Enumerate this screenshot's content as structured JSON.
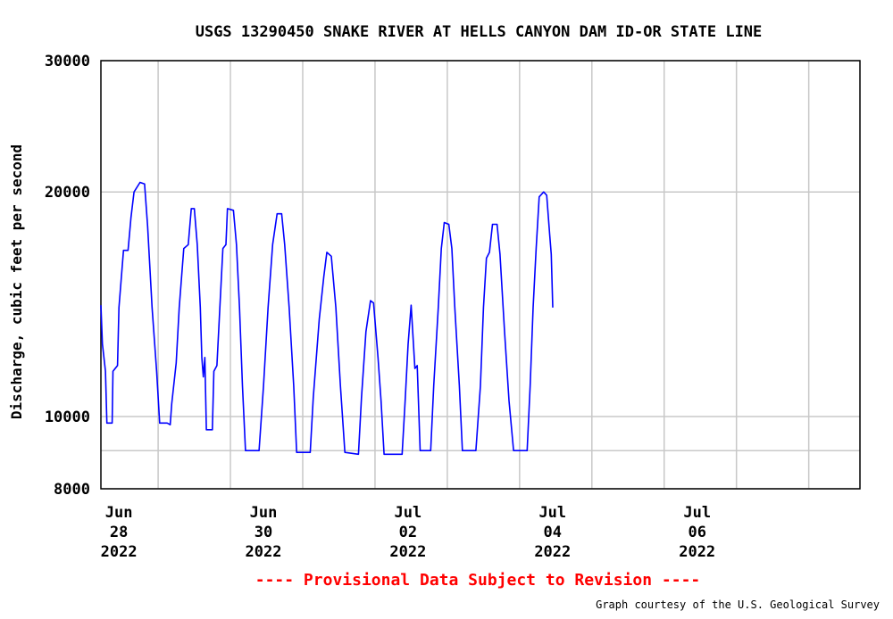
{
  "chart_data": {
    "type": "line",
    "title": "USGS 13290450 SNAKE RIVER AT HELLS CANYON DAM ID-OR STATE LINE",
    "ylabel": "Discharge, cubic feet per second",
    "y_scale": "log",
    "ylim": [
      8000,
      30000
    ],
    "y_ticks": [
      30000,
      20000,
      10000,
      8000
    ],
    "y_gridlines": [
      30000,
      20000,
      10000,
      9000,
      8000
    ],
    "xlim": [
      "2022-06-27 05:00",
      "2022-07-07 17:00"
    ],
    "x_tick_labels": [
      {
        "at": "2022-06-28",
        "month": "Jun",
        "day": "28",
        "year": "2022"
      },
      {
        "at": "2022-06-30",
        "month": "Jun",
        "day": "30",
        "year": "2022"
      },
      {
        "at": "2022-07-02",
        "month": "Jul",
        "day": "02",
        "year": "2022"
      },
      {
        "at": "2022-07-04",
        "month": "Jul",
        "day": "04",
        "year": "2022"
      },
      {
        "at": "2022-07-06",
        "month": "Jul",
        "day": "06",
        "year": "2022"
      }
    ],
    "x_gridlines": [
      "2022-06-28",
      "2022-06-29",
      "2022-06-30",
      "2022-07-01",
      "2022-07-02",
      "2022-07-03",
      "2022-07-04",
      "2022-07-05",
      "2022-07-06",
      "2022-07-07"
    ],
    "grid": true,
    "series": [
      {
        "color": "#0000ff",
        "points": [
          [
            "2022-06-27 05:00",
            14100
          ],
          [
            "2022-06-27 05:30",
            12500
          ],
          [
            "2022-06-27 06:30",
            11500
          ],
          [
            "2022-06-27 07:00",
            9800
          ],
          [
            "2022-06-27 08:45",
            9800
          ],
          [
            "2022-06-27 09:00",
            11500
          ],
          [
            "2022-06-27 10:30",
            11700
          ],
          [
            "2022-06-27 11:00",
            14000
          ],
          [
            "2022-06-27 12:30",
            16700
          ],
          [
            "2022-06-27 14:00",
            16700
          ],
          [
            "2022-06-27 15:00",
            18500
          ],
          [
            "2022-06-27 16:00",
            20000
          ],
          [
            "2022-06-27 18:00",
            20600
          ],
          [
            "2022-06-27 19:30",
            20500
          ],
          [
            "2022-06-27 20:30",
            18000
          ],
          [
            "2022-06-27 22:00",
            14000
          ],
          [
            "2022-06-27 23:30",
            11500
          ],
          [
            "2022-06-28 00:30",
            9800
          ],
          [
            "2022-06-28 03:00",
            9800
          ],
          [
            "2022-06-28 04:00",
            9750
          ],
          [
            "2022-06-28 04:30",
            10400
          ],
          [
            "2022-06-28 06:00",
            11800
          ],
          [
            "2022-06-28 07:00",
            14000
          ],
          [
            "2022-06-28 08:30",
            16800
          ],
          [
            "2022-06-28 10:00",
            17000
          ],
          [
            "2022-06-28 11:00",
            19000
          ],
          [
            "2022-06-28 12:00",
            19000
          ],
          [
            "2022-06-28 13:00",
            17000
          ],
          [
            "2022-06-28 14:00",
            14000
          ],
          [
            "2022-06-28 14:30",
            12000
          ],
          [
            "2022-06-28 15:00",
            11300
          ],
          [
            "2022-06-28 15:30",
            12000
          ],
          [
            "2022-06-28 16:00",
            9600
          ],
          [
            "2022-06-28 18:00",
            9600
          ],
          [
            "2022-06-28 18:30",
            11500
          ],
          [
            "2022-06-28 19:30",
            11700
          ],
          [
            "2022-06-28 20:30",
            14000
          ],
          [
            "2022-06-28 21:30",
            16800
          ],
          [
            "2022-06-28 22:30",
            17000
          ],
          [
            "2022-06-28 23:00",
            19000
          ],
          [
            "2022-06-29 01:00",
            18900
          ],
          [
            "2022-06-29 02:00",
            17000
          ],
          [
            "2022-06-29 03:00",
            14000
          ],
          [
            "2022-06-29 04:00",
            11000
          ],
          [
            "2022-06-29 05:00",
            9000
          ],
          [
            "2022-06-29 09:30",
            9000
          ],
          [
            "2022-06-29 11:00",
            11000
          ],
          [
            "2022-06-29 12:30",
            14000
          ],
          [
            "2022-06-29 14:00",
            17000
          ],
          [
            "2022-06-29 15:30",
            18700
          ],
          [
            "2022-06-29 17:00",
            18700
          ],
          [
            "2022-06-29 18:00",
            17000
          ],
          [
            "2022-06-29 19:30",
            14000
          ],
          [
            "2022-06-29 21:00",
            11000
          ],
          [
            "2022-06-29 22:00",
            8950
          ],
          [
            "2022-06-30 02:30",
            8950
          ],
          [
            "2022-06-30 03:30",
            10600
          ],
          [
            "2022-06-30 05:30",
            13500
          ],
          [
            "2022-06-30 07:00",
            15400
          ],
          [
            "2022-06-30 08:00",
            16600
          ],
          [
            "2022-06-30 09:30",
            16400
          ],
          [
            "2022-06-30 11:00",
            14000
          ],
          [
            "2022-06-30 12:30",
            11000
          ],
          [
            "2022-06-30 14:00",
            8950
          ],
          [
            "2022-06-30 18:30",
            8900
          ],
          [
            "2022-06-30 19:30",
            10600
          ],
          [
            "2022-06-30 21:00",
            13000
          ],
          [
            "2022-06-30 22:30",
            14300
          ],
          [
            "2022-06-30 23:30",
            14200
          ],
          [
            "2022-07-01 01:00",
            12000
          ],
          [
            "2022-07-01 02:00",
            10500
          ],
          [
            "2022-07-01 03:00",
            8900
          ],
          [
            "2022-07-01 09:00",
            8900
          ],
          [
            "2022-07-01 10:00",
            10500
          ],
          [
            "2022-07-01 11:00",
            12500
          ],
          [
            "2022-07-01 12:00",
            14100
          ],
          [
            "2022-07-01 12:45",
            12500
          ],
          [
            "2022-07-01 13:15",
            11600
          ],
          [
            "2022-07-01 14:00",
            11700
          ],
          [
            "2022-07-01 15:00",
            9000
          ],
          [
            "2022-07-01 18:30",
            9000
          ],
          [
            "2022-07-01 19:30",
            11000
          ],
          [
            "2022-07-01 21:00",
            14000
          ],
          [
            "2022-07-01 22:00",
            16800
          ],
          [
            "2022-07-01 23:00",
            18200
          ],
          [
            "2022-07-02 00:30",
            18100
          ],
          [
            "2022-07-02 01:30",
            16800
          ],
          [
            "2022-07-02 02:30",
            14000
          ],
          [
            "2022-07-02 04:00",
            11000
          ],
          [
            "2022-07-02 05:00",
            9000
          ],
          [
            "2022-07-02 09:30",
            9000
          ],
          [
            "2022-07-02 11:00",
            11000
          ],
          [
            "2022-07-02 12:00",
            14000
          ],
          [
            "2022-07-02 13:00",
            16300
          ],
          [
            "2022-07-02 14:00",
            16600
          ],
          [
            "2022-07-02 15:00",
            18100
          ],
          [
            "2022-07-02 16:30",
            18100
          ],
          [
            "2022-07-02 17:30",
            16500
          ],
          [
            "2022-07-02 19:00",
            13000
          ],
          [
            "2022-07-02 20:30",
            10500
          ],
          [
            "2022-07-02 22:00",
            9000
          ],
          [
            "2022-07-03 02:30",
            9000
          ],
          [
            "2022-07-03 03:30",
            11000
          ],
          [
            "2022-07-03 04:30",
            14000
          ],
          [
            "2022-07-03 05:30",
            16800
          ],
          [
            "2022-07-03 06:30",
            19700
          ],
          [
            "2022-07-03 08:00",
            20000
          ],
          [
            "2022-07-03 09:00",
            19800
          ],
          [
            "2022-07-03 10:00",
            17500
          ],
          [
            "2022-07-03 10:30",
            16500
          ],
          [
            "2022-07-03 11:00",
            14000
          ]
        ]
      }
    ],
    "annotations": [
      "---- Provisional Data Subject to Revision ----",
      "Graph courtesy of the U.S. Geological Survey"
    ]
  }
}
